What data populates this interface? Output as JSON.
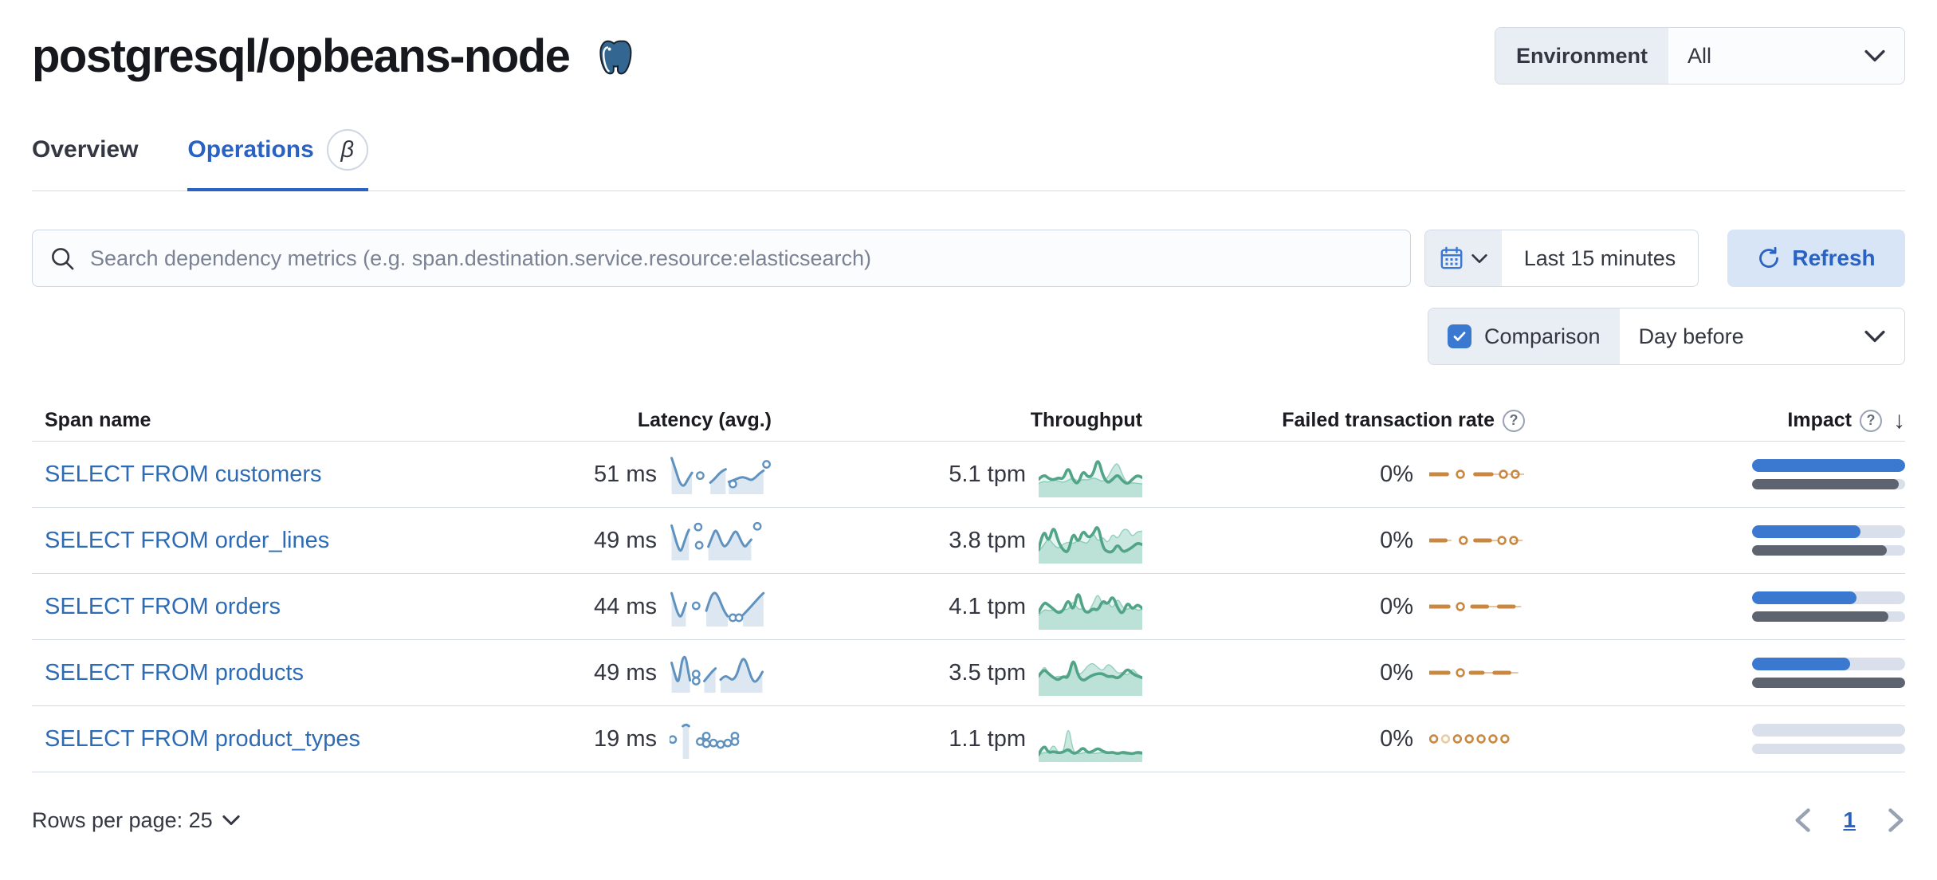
{
  "header": {
    "title": "postgresql/opbeans-node",
    "icon": "postgresql-elephant",
    "environment": {
      "label": "Environment",
      "value": "All"
    }
  },
  "tabs": [
    {
      "label": "Overview",
      "active": false
    },
    {
      "label": "Operations",
      "active": true,
      "badge": "β"
    }
  ],
  "toolbar": {
    "search_placeholder": "Search dependency metrics (e.g. span.destination.service.resource:elasticsearch)",
    "time_range": "Last 15 minutes",
    "refresh_label": "Refresh",
    "comparison_label": "Comparison",
    "comparison_checked": true,
    "comparison_value": "Day before"
  },
  "table": {
    "columns": [
      "Span name",
      "Latency (avg.)",
      "Throughput",
      "Failed transaction rate",
      "Impact"
    ],
    "sorted_column": "Impact",
    "sort_direction": "desc",
    "rows": [
      {
        "span_name": "SELECT FROM customers",
        "latency": "51 ms",
        "throughput": "5.1 tpm",
        "failed_rate": "0%",
        "impact": {
          "current_pct": 100,
          "previous_pct": 96
        },
        "latency_spark": {
          "lines": [
            [
              [
                2,
                6
              ],
              [
                6,
                40
              ],
              [
                10,
                78
              ],
              [
                14,
                88
              ],
              [
                18,
                66
              ],
              [
                22,
                48
              ]
            ],
            [
              [
                40,
                76
              ],
              [
                44,
                66
              ],
              [
                48,
                52
              ],
              [
                52,
                42
              ],
              [
                55,
                38
              ]
            ],
            [
              [
                58,
                74
              ],
              [
                64,
                68
              ],
              [
                70,
                60
              ],
              [
                75,
                62
              ],
              [
                80,
                70
              ],
              [
                84,
                62
              ],
              [
                88,
                50
              ],
              [
                92,
                42
              ]
            ]
          ],
          "dots": [
            [
              30,
              56
            ],
            [
              62,
              80
            ],
            [
              95,
              24
            ]
          ]
        },
        "throughput_spark": {
          "line": [
            62,
            50,
            60,
            64,
            58,
            62,
            30,
            66,
            74,
            40,
            58,
            52,
            8,
            54,
            72,
            62,
            50,
            66,
            74,
            62,
            52,
            58
          ],
          "comparison": [
            72,
            66,
            70,
            62,
            66,
            70,
            64,
            58,
            68,
            62,
            64,
            58,
            62,
            68,
            58,
            34,
            20,
            52,
            74,
            70,
            72,
            73
          ]
        },
        "failed_spark": [
          {
            "t": "seg",
            "a": 0,
            "b": 12
          },
          {
            "t": "dot",
            "x": 21
          },
          {
            "t": "seg",
            "a": 31,
            "b": 42
          },
          {
            "t": "thin",
            "a": 42,
            "b": 57
          },
          {
            "t": "dot",
            "x": 50
          },
          {
            "t": "dot",
            "x": 58
          },
          {
            "t": "thin",
            "a": 58,
            "b": 64
          }
        ]
      },
      {
        "span_name": "SELECT FROM order_lines",
        "latency": "49 ms",
        "throughput": "3.8 tpm",
        "failed_rate": "0%",
        "impact": {
          "current_pct": 71,
          "previous_pct": 88
        },
        "latency_spark": {
          "lines": [
            [
              [
                2,
                10
              ],
              [
                5,
                40
              ],
              [
                8,
                70
              ],
              [
                11,
                86
              ],
              [
                14,
                60
              ],
              [
                17,
                34
              ],
              [
                19,
                22
              ]
            ],
            [
              [
                38,
                70
              ],
              [
                42,
                40
              ],
              [
                45,
                20
              ],
              [
                48,
                36
              ],
              [
                51,
                60
              ],
              [
                54,
                72
              ],
              [
                58,
                58
              ],
              [
                62,
                34
              ],
              [
                65,
                24
              ],
              [
                68,
                40
              ],
              [
                71,
                60
              ],
              [
                74,
                72
              ],
              [
                77,
                60
              ],
              [
                80,
                50
              ]
            ]
          ],
          "dots": [
            [
              28,
              14
            ],
            [
              29,
              66
            ],
            [
              86,
              12
            ]
          ]
        },
        "throughput_spark": {
          "line": [
            72,
            18,
            58,
            12,
            54,
            74,
            80,
            28,
            58,
            24,
            44,
            36,
            10,
            68,
            78,
            78,
            58,
            78,
            74,
            66,
            56,
            60
          ],
          "comparison": [
            76,
            62,
            44,
            60,
            70,
            58,
            54,
            58,
            50,
            54,
            58,
            28,
            54,
            40,
            58,
            32,
            48,
            24,
            22,
            42,
            28,
            28
          ]
        },
        "failed_spark": [
          {
            "t": "seg",
            "a": 0,
            "b": 11
          },
          {
            "t": "thin",
            "a": 11,
            "b": 15
          },
          {
            "t": "dot",
            "x": 23
          },
          {
            "t": "seg",
            "a": 31,
            "b": 41
          },
          {
            "t": "thin",
            "a": 41,
            "b": 49
          },
          {
            "t": "dot",
            "x": 49
          },
          {
            "t": "dot",
            "x": 57
          },
          {
            "t": "thin",
            "a": 57,
            "b": 63
          }
        ]
      },
      {
        "span_name": "SELECT FROM orders",
        "latency": "44 ms",
        "throughput": "4.1 tpm",
        "failed_rate": "0%",
        "impact": {
          "current_pct": 68,
          "previous_pct": 89
        },
        "latency_spark": {
          "lines": [
            [
              [
                2,
                14
              ],
              [
                5,
                44
              ],
              [
                8,
                72
              ],
              [
                11,
                84
              ],
              [
                14,
                60
              ],
              [
                16,
                42
              ]
            ],
            [
              [
                36,
                64
              ],
              [
                39,
                36
              ],
              [
                42,
                16
              ],
              [
                45,
                12
              ],
              [
                48,
                26
              ],
              [
                51,
                48
              ],
              [
                54,
                68
              ],
              [
                57,
                80
              ]
            ],
            [
              [
                72,
                76
              ],
              [
                78,
                58
              ],
              [
                84,
                38
              ],
              [
                89,
                22
              ],
              [
                92,
                14
              ]
            ]
          ],
          "dots": [
            [
              26,
              50
            ],
            [
              62,
              84
            ],
            [
              68,
              84
            ]
          ]
        },
        "throughput_spark": {
          "line": [
            64,
            38,
            46,
            56,
            66,
            60,
            30,
            64,
            8,
            58,
            66,
            54,
            60,
            34,
            46,
            22,
            54,
            70,
            38,
            58,
            44,
            54
          ],
          "comparison": [
            72,
            56,
            60,
            58,
            62,
            56,
            58,
            34,
            58,
            54,
            64,
            44,
            16,
            48,
            38,
            56,
            28,
            52,
            58,
            48,
            60,
            56
          ]
        },
        "failed_spark": [
          {
            "t": "seg",
            "a": 0,
            "b": 13
          },
          {
            "t": "dot",
            "x": 21
          },
          {
            "t": "seg",
            "a": 29,
            "b": 39
          },
          {
            "t": "thin",
            "a": 39,
            "b": 47
          },
          {
            "t": "seg",
            "a": 47,
            "b": 57
          },
          {
            "t": "thin",
            "a": 57,
            "b": 62
          }
        ]
      },
      {
        "span_name": "SELECT FROM products",
        "latency": "49 ms",
        "throughput": "3.5 tpm",
        "failed_rate": "0%",
        "impact": {
          "current_pct": 64,
          "previous_pct": 100
        },
        "latency_spark": {
          "lines": [
            [
              [
                2,
                24
              ],
              [
                5,
                56
              ],
              [
                8,
                82
              ],
              [
                10,
                60
              ],
              [
                12,
                20
              ],
              [
                14,
                6
              ],
              [
                16,
                10
              ],
              [
                18,
                44
              ],
              [
                20,
                74
              ]
            ],
            [
              [
                34,
                76
              ],
              [
                38,
                62
              ],
              [
                42,
                48
              ],
              [
                45,
                40
              ]
            ],
            [
              [
                50,
                72
              ],
              [
                54,
                60
              ],
              [
                58,
                66
              ],
              [
                62,
                74
              ],
              [
                66,
                58
              ],
              [
                69,
                28
              ],
              [
                72,
                10
              ],
              [
                75,
                20
              ],
              [
                78,
                48
              ],
              [
                81,
                72
              ],
              [
                84,
                80
              ],
              [
                88,
                66
              ],
              [
                91,
                50
              ]
            ]
          ],
          "dots": [
            [
              26,
              56
            ],
            [
              26,
              76
            ]
          ]
        },
        "throughput_spark": {
          "line": [
            58,
            40,
            52,
            62,
            68,
            58,
            64,
            12,
            58,
            70,
            62,
            55,
            52,
            52,
            60,
            58,
            64,
            54,
            40,
            52,
            58,
            62
          ],
          "comparison": [
            62,
            28,
            54,
            62,
            58,
            60,
            54,
            10,
            56,
            48,
            32,
            26,
            38,
            46,
            28,
            36,
            52,
            48,
            58,
            38,
            54,
            60
          ]
        },
        "failed_spark": [
          {
            "t": "seg",
            "a": 0,
            "b": 13
          },
          {
            "t": "dot",
            "x": 21
          },
          {
            "t": "seg",
            "a": 28,
            "b": 36
          },
          {
            "t": "thin",
            "a": 36,
            "b": 44
          },
          {
            "t": "seg",
            "a": 44,
            "b": 54
          },
          {
            "t": "thin",
            "a": 54,
            "b": 60
          }
        ]
      },
      {
        "span_name": "SELECT FROM product_types",
        "latency": "19 ms",
        "throughput": "1.1 tpm",
        "failed_rate": "0%",
        "impact": {
          "current_pct": 0,
          "previous_pct": 0
        },
        "latency_spark": {
          "lines": [
            [
              [
                13,
                16
              ],
              [
                16,
                10
              ],
              [
                19,
                16
              ]
            ]
          ],
          "dots": [
            [
              3,
              54
            ],
            [
              30,
              60
            ],
            [
              36,
              44
            ],
            [
              36,
              66
            ],
            [
              43,
              64
            ],
            [
              50,
              68
            ],
            [
              57,
              64
            ],
            [
              64,
              44
            ],
            [
              64,
              60
            ]
          ]
        },
        "throughput_spark": {
          "line": [
            88,
            62,
            84,
            80,
            84,
            82,
            74,
            86,
            82,
            70,
            84,
            80,
            72,
            80,
            84,
            82,
            86,
            82,
            84,
            86,
            82,
            84
          ],
          "comparison": [
            88,
            82,
            84,
            62,
            84,
            86,
            12,
            82,
            86,
            84,
            80,
            86,
            84,
            82,
            86,
            84,
            82,
            86,
            88,
            84,
            86,
            87
          ]
        },
        "failed_spark": [
          {
            "t": "dot",
            "x": 3
          },
          {
            "t": "dotlight",
            "x": 11
          },
          {
            "t": "dot",
            "x": 19
          },
          {
            "t": "dot",
            "x": 27
          },
          {
            "t": "dot",
            "x": 35
          },
          {
            "t": "dot",
            "x": 43
          },
          {
            "t": "dot",
            "x": 51
          }
        ]
      }
    ]
  },
  "footer": {
    "rows_per_page": "Rows per page: 25",
    "page": "1"
  },
  "colors": {
    "primary_blue": "#2a62c4",
    "link_blue": "#2d6cb5",
    "control_blue": "#3b79d1",
    "sparkline_blue": "#6092c0",
    "sparkline_green": "#52a487",
    "sparkline_green_fill": "#54b399",
    "sparkline_orange": "#c9873f",
    "impact_bar_blue": "#3b79d1",
    "impact_bar_gray": "#5d6470",
    "bar_track_gray": "#d9dfeb",
    "divider_gray": "#d3dae6",
    "panel_gray": "#e9edf4"
  }
}
